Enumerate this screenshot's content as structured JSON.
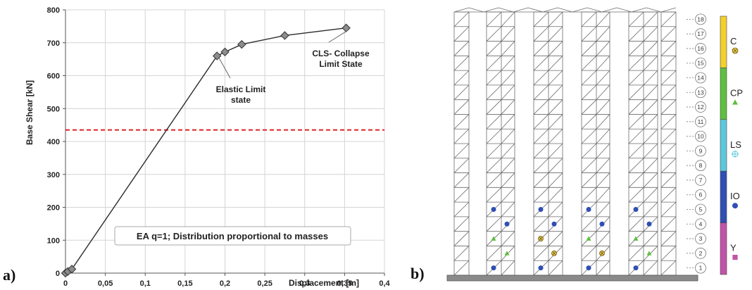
{
  "panel_a_label": "a)",
  "panel_b_label": "b)",
  "chart_data": {
    "type": "line",
    "xlabel": "Displacement [m]",
    "ylabel": "Base Shear [kN]",
    "xlim": [
      0,
      0.4
    ],
    "ylim": [
      0,
      800
    ],
    "x_ticks": [
      "0",
      "0,05",
      "0,1",
      "0,15",
      "0,2",
      "0,25",
      "0,3",
      "0,35",
      "0,4"
    ],
    "y_ticks": [
      "0",
      "100",
      "200",
      "300",
      "400",
      "500",
      "600",
      "700",
      "800"
    ],
    "grid": true,
    "series": [
      {
        "x": [
          0,
          0.003,
          0.008,
          0.19,
          0.2,
          0.221,
          0.275,
          0.352
        ],
        "y": [
          0,
          5,
          12,
          660,
          672,
          695,
          722,
          745
        ],
        "color": "#2b2b2b",
        "marker": "diamond",
        "marker_color": "#8c8c8c"
      }
    ],
    "reference_line": {
      "y": 435,
      "color": "#e02020",
      "style": "dashed"
    },
    "annotations": [
      {
        "lines": [
          "Elastic Limit",
          "state"
        ],
        "point_x": 0.19,
        "point_y": 660
      },
      {
        "lines": [
          "CLS- Collapse",
          "Limit State"
        ],
        "point_x": 0.352,
        "point_y": 745
      }
    ],
    "note": "EA q=1; Distribution proportional to masses"
  },
  "frame": {
    "storeys": 18,
    "floor_labels": [
      "1",
      "2",
      "3",
      "4",
      "5",
      "6",
      "7",
      "8",
      "9",
      "10",
      "11",
      "12",
      "13",
      "14",
      "15",
      "16",
      "17",
      "18"
    ],
    "hinges": [
      {
        "bay": 1,
        "storey": 1,
        "type": "IO"
      },
      {
        "bay": 1,
        "storey": 2,
        "type": "CP"
      },
      {
        "bay": 1,
        "storey": 3,
        "type": "CP"
      },
      {
        "bay": 1,
        "storey": 4,
        "type": "IO"
      },
      {
        "bay": 1,
        "storey": 5,
        "type": "IO"
      },
      {
        "bay": 2,
        "storey": 1,
        "type": "IO"
      },
      {
        "bay": 2,
        "storey": 2,
        "type": "C"
      },
      {
        "bay": 2,
        "storey": 3,
        "type": "C"
      },
      {
        "bay": 2,
        "storey": 4,
        "type": "IO"
      },
      {
        "bay": 2,
        "storey": 5,
        "type": "IO"
      },
      {
        "bay": 3,
        "storey": 1,
        "type": "IO"
      },
      {
        "bay": 3,
        "storey": 2,
        "type": "C"
      },
      {
        "bay": 3,
        "storey": 3,
        "type": "CP"
      },
      {
        "bay": 3,
        "storey": 4,
        "type": "IO"
      },
      {
        "bay": 3,
        "storey": 5,
        "type": "IO"
      },
      {
        "bay": 4,
        "storey": 1,
        "type": "IO"
      },
      {
        "bay": 4,
        "storey": 2,
        "type": "CP"
      },
      {
        "bay": 4,
        "storey": 3,
        "type": "CP"
      },
      {
        "bay": 4,
        "storey": 4,
        "type": "IO"
      },
      {
        "bay": 4,
        "storey": 5,
        "type": "IO"
      }
    ]
  },
  "legend": [
    {
      "key": "C",
      "label": "C",
      "color": "#f2d12e",
      "symbol": "circle-x"
    },
    {
      "key": "CP",
      "label": "CP",
      "color": "#5fbf3f",
      "symbol": "triangle"
    },
    {
      "key": "LS",
      "label": "LS",
      "color": "#5cc8dc",
      "symbol": "cross-circle"
    },
    {
      "key": "IO",
      "label": "IO",
      "color": "#2f4fb4",
      "symbol": "dot"
    },
    {
      "key": "Y",
      "label": "Y",
      "color": "#c254a8",
      "symbol": "square"
    }
  ]
}
